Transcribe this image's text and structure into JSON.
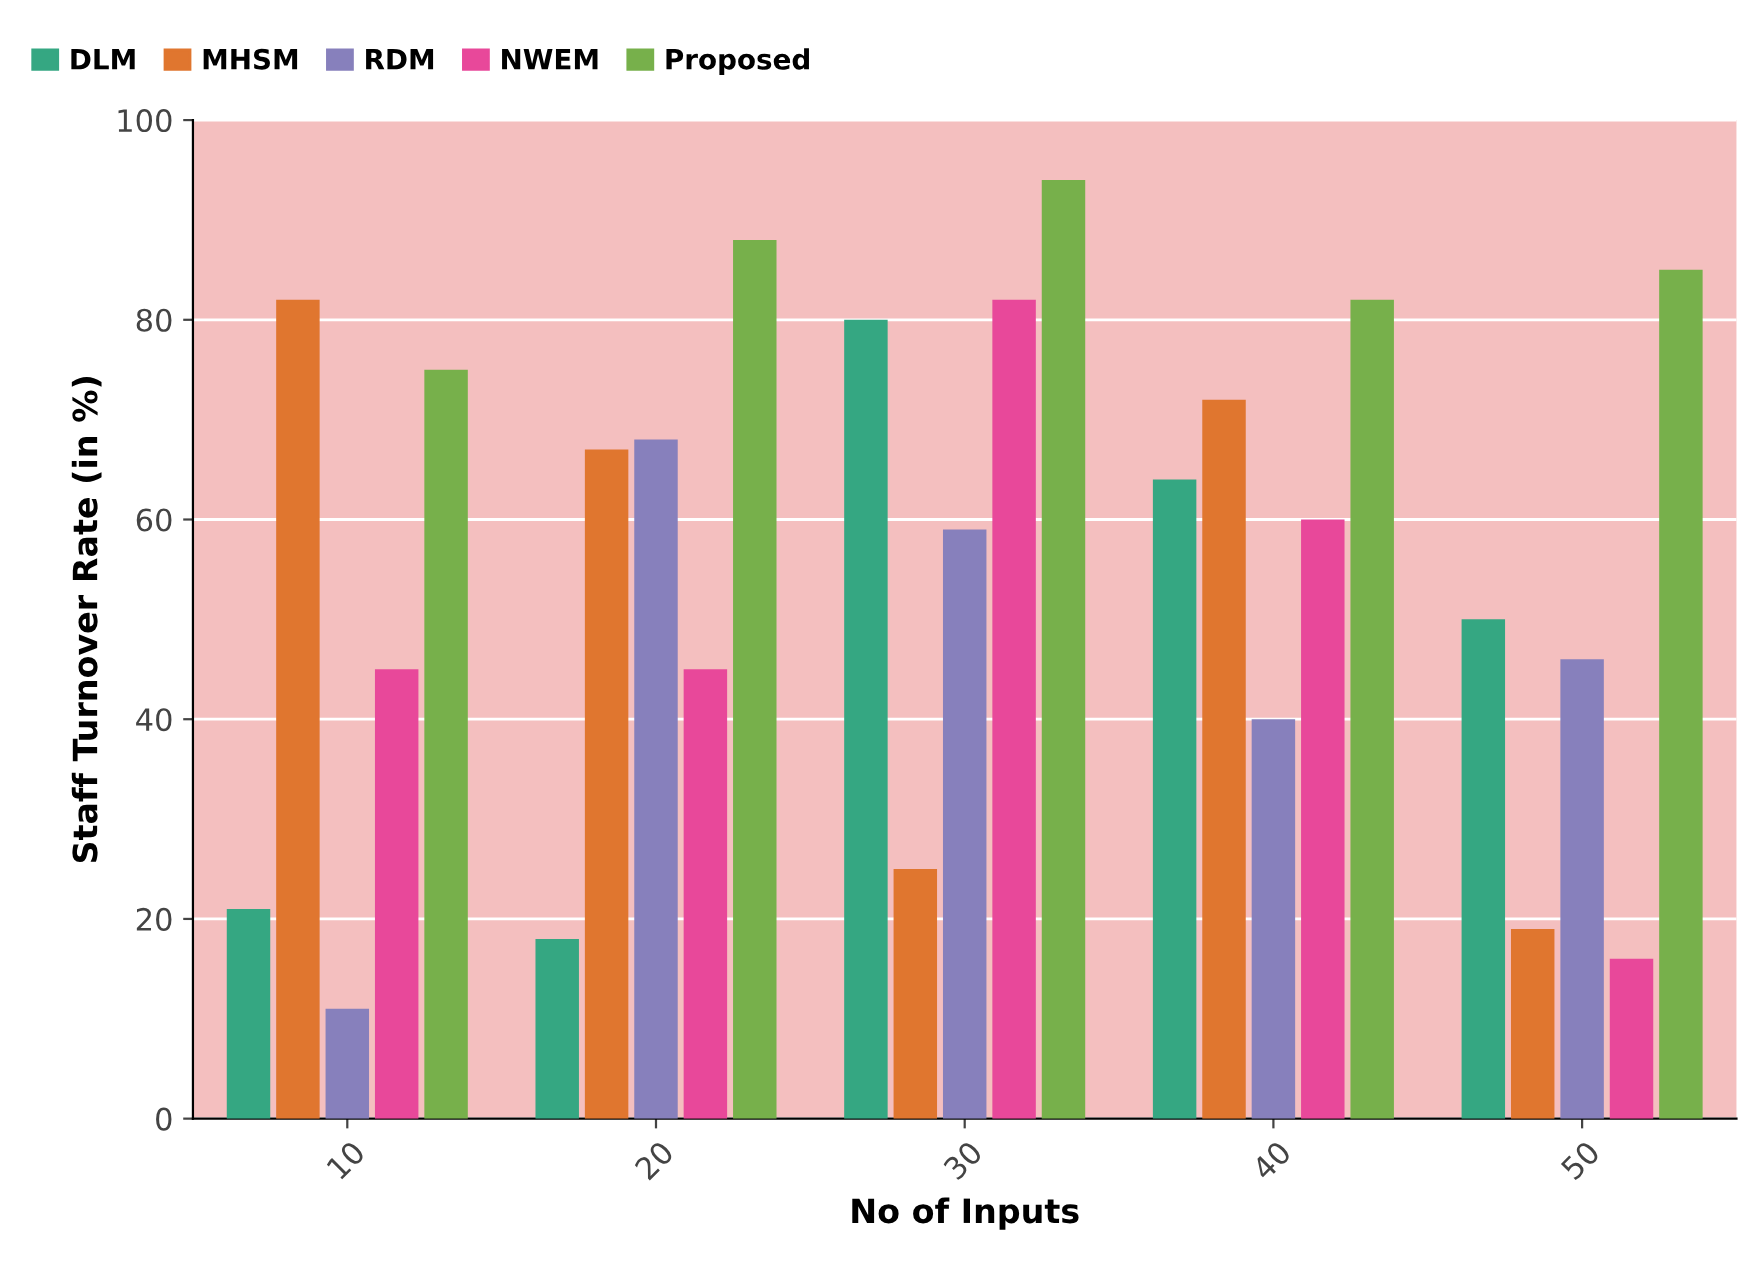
{
  "chart_data": {
    "type": "bar",
    "xlabel": "No of Inputs",
    "ylabel": "Staff Turnover Rate (in %)",
    "categories": [
      "10",
      "20",
      "30",
      "40",
      "50"
    ],
    "series": [
      {
        "name": "DLM",
        "color": "#35a782",
        "values": [
          21,
          18,
          80,
          64,
          50
        ]
      },
      {
        "name": "MHSM",
        "color": "#e0762f",
        "values": [
          82,
          67,
          25,
          72,
          19
        ]
      },
      {
        "name": "RDM",
        "color": "#8780bc",
        "values": [
          11,
          68,
          59,
          40,
          46
        ]
      },
      {
        "name": "NWEM",
        "color": "#e8489a",
        "values": [
          45,
          45,
          82,
          60,
          16
        ]
      },
      {
        "name": "Proposed",
        "color": "#77b04b",
        "values": [
          75,
          88,
          94,
          82,
          85
        ]
      }
    ],
    "ylim": [
      0,
      100
    ],
    "yticks": [
      0,
      20,
      40,
      60,
      80,
      100
    ],
    "grid": "y",
    "legend": "top left"
  }
}
